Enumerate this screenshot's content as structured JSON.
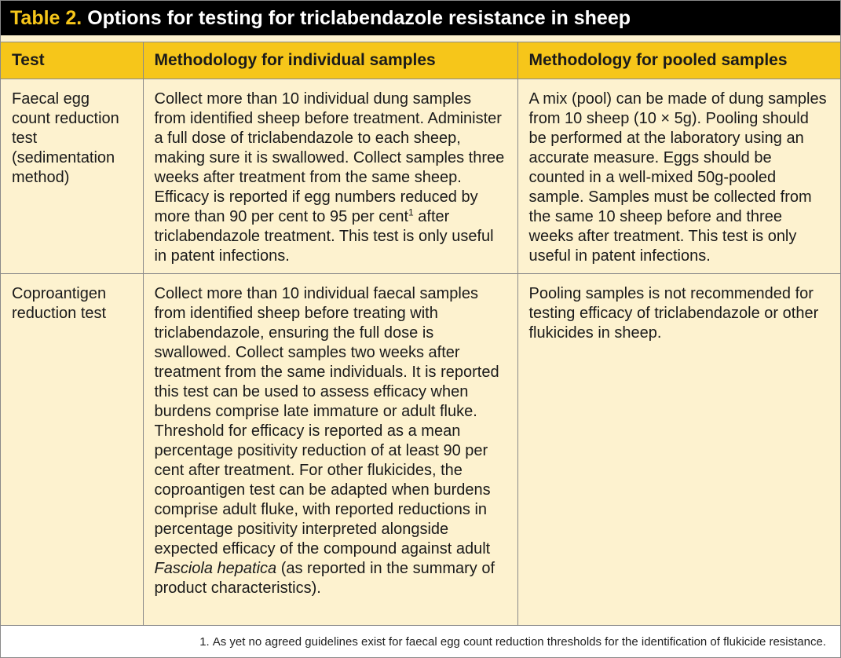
{
  "title": {
    "label": "Table 2.",
    "text": "Options for testing for triclabendazole resistance in sheep"
  },
  "headers": [
    "Test",
    "Methodology for individual samples",
    "Methodology for pooled samples"
  ],
  "rows": [
    {
      "test": "Faecal egg count reduction test (sedimentation method)",
      "individual_before": "Collect more than 10 individual dung samples from identified sheep before treatment. Administer a full dose of triclabendazole to each sheep, making sure it is swallowed. Collect samples three weeks after treatment from the same sheep. Efficacy is reported if egg numbers reduced by more than 90 per cent to 95 per cent",
      "individual_sup": "1",
      "individual_after": " after triclabendazole treatment. This test is only useful in patent infections.",
      "pooled": "A mix (pool) can be made of dung samples from 10 sheep (10 × 5g). Pooling should be performed at the laboratory using an accurate measure. Eggs should be counted in a well-mixed 50g-pooled sample. Samples must be collected from the same 10 sheep before and three weeks after treatment. This test is only useful in patent infections."
    },
    {
      "test": "Coproantigen reduction test",
      "individual_before": "Collect more than 10 individual faecal samples from identified sheep before treating with triclabendazole, ensuring the full dose is swallowed. Collect samples two weeks after treatment from the same individuals. It is reported this test can be used to assess efficacy when burdens comprise late immature or adult fluke. Threshold for efficacy is reported as a mean percentage positivity reduction of at least 90 per cent after treatment. For other flukicides, the coproantigen test can be adapted when burdens comprise adult fluke, with reported reductions in percentage positivity interpreted alongside expected efficacy of the compound against adult ",
      "individual_italic": "Fasciola hepatica",
      "individual_after": " (as reported in the summary of product characteristics).",
      "pooled": "Pooling samples is not recommended for testing efficacy of triclabendazole or other flukicides in sheep."
    }
  ],
  "footnote": {
    "number": "1.",
    "text": "As yet no agreed guidelines exist for faecal egg count reduction thresholds for the identification of flukicide resistance."
  },
  "colors": {
    "header_bg": "#f6c61a",
    "body_bg": "#fdf2cf",
    "title_bg": "#000000",
    "title_label": "#f6c61a",
    "title_text": "#ffffff"
  }
}
